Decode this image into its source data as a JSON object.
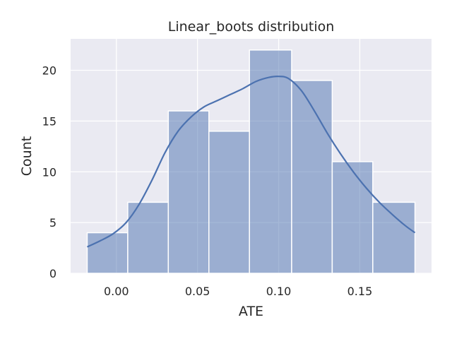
{
  "chart_data": {
    "type": "bar",
    "title": "Linear_boots distribution",
    "xlabel": "ATE",
    "ylabel": "Count",
    "bins": [
      {
        "x0": -0.018,
        "x1": 0.007,
        "count": 4
      },
      {
        "x0": 0.007,
        "x1": 0.032,
        "count": 7
      },
      {
        "x0": 0.032,
        "x1": 0.057,
        "count": 16
      },
      {
        "x0": 0.057,
        "x1": 0.082,
        "count": 14
      },
      {
        "x0": 0.082,
        "x1": 0.108,
        "count": 22
      },
      {
        "x0": 0.108,
        "x1": 0.133,
        "count": 19
      },
      {
        "x0": 0.133,
        "x1": 0.158,
        "count": 11
      },
      {
        "x0": 0.158,
        "x1": 0.184,
        "count": 7
      }
    ],
    "kde": {
      "x": [
        -0.018,
        -0.01,
        -0.002,
        0.006,
        0.014,
        0.022,
        0.03,
        0.038,
        0.046,
        0.054,
        0.062,
        0.07,
        0.078,
        0.086,
        0.094,
        0.1,
        0.106,
        0.114,
        0.122,
        0.13,
        0.138,
        0.146,
        0.154,
        0.162,
        0.17,
        0.178,
        0.184
      ],
      "y": [
        2.6,
        3.2,
        3.9,
        5.0,
        6.8,
        9.2,
        11.9,
        14.0,
        15.4,
        16.4,
        17.0,
        17.6,
        18.2,
        18.9,
        19.3,
        19.4,
        19.2,
        18.0,
        16.0,
        13.8,
        11.8,
        10.0,
        8.4,
        7.0,
        5.8,
        4.7,
        4.0
      ]
    },
    "xticks": [
      0.0,
      0.05,
      0.1,
      0.15
    ],
    "xtick_labels": [
      "0.00",
      "0.05",
      "0.10",
      "0.15"
    ],
    "yticks": [
      0,
      5,
      10,
      15,
      20
    ],
    "ytick_labels": [
      "0",
      "5",
      "10",
      "15",
      "20"
    ],
    "xlim": [
      -0.0282,
      0.1942
    ],
    "ylim": [
      0,
      23.1
    ],
    "grid": true,
    "colors": {
      "background": "#eaeaf2",
      "grid": "#ffffff",
      "bar_fill": "#4c72b0",
      "bar_opacity": 0.5,
      "line": "#4c72b0"
    }
  }
}
